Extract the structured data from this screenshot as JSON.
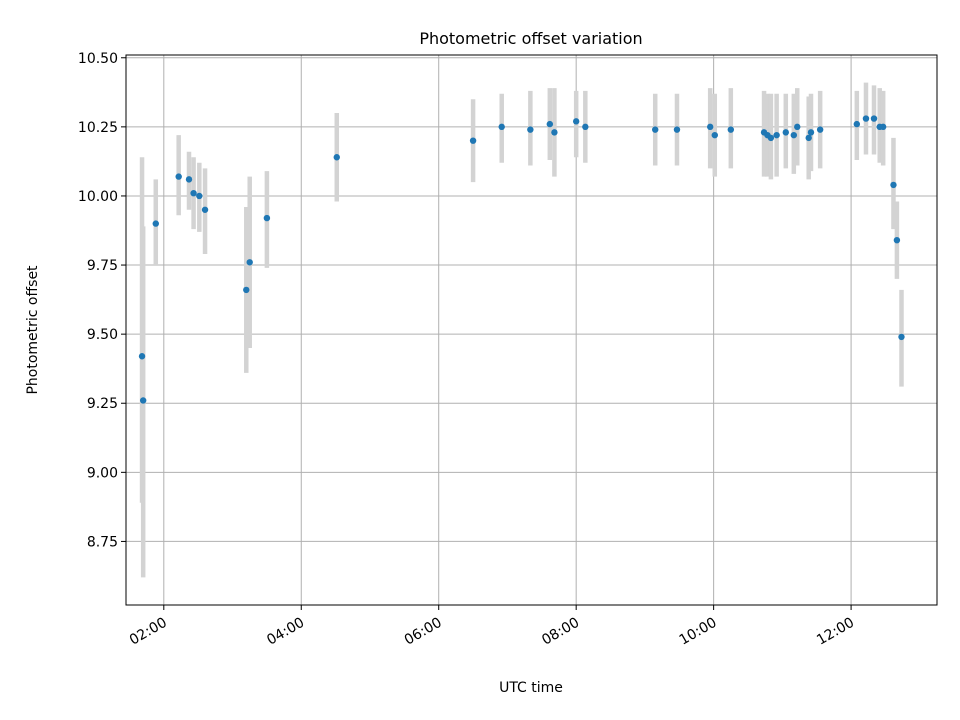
{
  "chart_data": {
    "type": "scatter",
    "title": "Photometric offset variation",
    "xlabel": "UTC time",
    "ylabel": "Photometric offset",
    "xlim": [
      "01:27",
      "13:15"
    ],
    "ylim": [
      8.52,
      10.51
    ],
    "grid": true,
    "xticks": [
      "02:00",
      "04:00",
      "06:00",
      "08:00",
      "10:00",
      "12:00"
    ],
    "yticks": [
      "8.75",
      "9.00",
      "9.25",
      "9.50",
      "9.75",
      "10.00",
      "10.25",
      "10.50"
    ],
    "colors": {
      "point": "#1f77b4",
      "errorbar": "#d3d3d3",
      "grid": "#b0b0b0",
      "axes": "#000000"
    },
    "points": [
      {
        "x": "01:41",
        "y": 9.42,
        "err_low": 8.89,
        "err_high": 10.14
      },
      {
        "x": "01:42",
        "y": 9.26,
        "err_low": 8.62,
        "err_high": 9.89
      },
      {
        "x": "01:53",
        "y": 9.9,
        "err_low": 9.75,
        "err_high": 10.06
      },
      {
        "x": "02:13",
        "y": 10.07,
        "err_low": 9.93,
        "err_high": 10.22
      },
      {
        "x": "02:22",
        "y": 10.06,
        "err_low": 9.95,
        "err_high": 10.16
      },
      {
        "x": "02:26",
        "y": 10.01,
        "err_low": 9.88,
        "err_high": 10.14
      },
      {
        "x": "02:31",
        "y": 10.0,
        "err_low": 9.87,
        "err_high": 10.12
      },
      {
        "x": "02:36",
        "y": 9.95,
        "err_low": 9.79,
        "err_high": 10.1
      },
      {
        "x": "03:12",
        "y": 9.66,
        "err_low": 9.36,
        "err_high": 9.96
      },
      {
        "x": "03:15",
        "y": 9.76,
        "err_low": 9.45,
        "err_high": 10.07
      },
      {
        "x": "03:30",
        "y": 9.92,
        "err_low": 9.74,
        "err_high": 10.09
      },
      {
        "x": "04:31",
        "y": 10.14,
        "err_low": 9.98,
        "err_high": 10.3
      },
      {
        "x": "06:30",
        "y": 10.2,
        "err_low": 10.05,
        "err_high": 10.35
      },
      {
        "x": "06:55",
        "y": 10.25,
        "err_low": 10.12,
        "err_high": 10.37
      },
      {
        "x": "07:20",
        "y": 10.24,
        "err_low": 10.11,
        "err_high": 10.38
      },
      {
        "x": "07:37",
        "y": 10.26,
        "err_low": 10.13,
        "err_high": 10.39
      },
      {
        "x": "07:41",
        "y": 10.23,
        "err_low": 10.07,
        "err_high": 10.39
      },
      {
        "x": "08:00",
        "y": 10.27,
        "err_low": 10.14,
        "err_high": 10.38
      },
      {
        "x": "08:08",
        "y": 10.25,
        "err_low": 10.12,
        "err_high": 10.38
      },
      {
        "x": "09:09",
        "y": 10.24,
        "err_low": 10.11,
        "err_high": 10.37
      },
      {
        "x": "09:28",
        "y": 10.24,
        "err_low": 10.11,
        "err_high": 10.37
      },
      {
        "x": "09:57",
        "y": 10.25,
        "err_low": 10.1,
        "err_high": 10.39
      },
      {
        "x": "10:01",
        "y": 10.22,
        "err_low": 10.07,
        "err_high": 10.37
      },
      {
        "x": "10:15",
        "y": 10.24,
        "err_low": 10.1,
        "err_high": 10.39
      },
      {
        "x": "10:44",
        "y": 10.23,
        "err_low": 10.07,
        "err_high": 10.38
      },
      {
        "x": "10:47",
        "y": 10.22,
        "err_low": 10.07,
        "err_high": 10.37
      },
      {
        "x": "10:50",
        "y": 10.21,
        "err_low": 10.06,
        "err_high": 10.37
      },
      {
        "x": "10:55",
        "y": 10.22,
        "err_low": 10.07,
        "err_high": 10.37
      },
      {
        "x": "11:03",
        "y": 10.23,
        "err_low": 10.1,
        "err_high": 10.37
      },
      {
        "x": "11:10",
        "y": 10.22,
        "err_low": 10.08,
        "err_high": 10.37
      },
      {
        "x": "11:13",
        "y": 10.25,
        "err_low": 10.11,
        "err_high": 10.39
      },
      {
        "x": "11:23",
        "y": 10.21,
        "err_low": 10.06,
        "err_high": 10.36
      },
      {
        "x": "11:25",
        "y": 10.23,
        "err_low": 10.09,
        "err_high": 10.37
      },
      {
        "x": "11:33",
        "y": 10.24,
        "err_low": 10.1,
        "err_high": 10.38
      },
      {
        "x": "12:05",
        "y": 10.26,
        "err_low": 10.13,
        "err_high": 10.38
      },
      {
        "x": "12:13",
        "y": 10.28,
        "err_low": 10.15,
        "err_high": 10.41
      },
      {
        "x": "12:20",
        "y": 10.28,
        "err_low": 10.15,
        "err_high": 10.4
      },
      {
        "x": "12:25",
        "y": 10.25,
        "err_low": 10.12,
        "err_high": 10.39
      },
      {
        "x": "12:28",
        "y": 10.25,
        "err_low": 10.11,
        "err_high": 10.38
      },
      {
        "x": "12:37",
        "y": 10.04,
        "err_low": 9.88,
        "err_high": 10.21
      },
      {
        "x": "12:40",
        "y": 9.84,
        "err_low": 9.7,
        "err_high": 9.98
      },
      {
        "x": "12:44",
        "y": 9.49,
        "err_low": 9.31,
        "err_high": 9.66
      }
    ]
  }
}
